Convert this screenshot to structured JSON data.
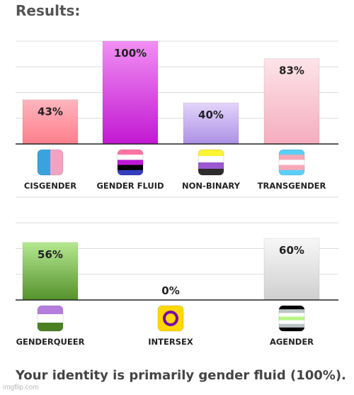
{
  "header": {
    "title": "Results:"
  },
  "footer": {
    "summary": "Your identity is primarily gender fluid (100%).",
    "watermark": "imgflip.com"
  },
  "chart_data": [
    {
      "type": "bar",
      "categories": [
        "CISGENDER",
        "GENDER FLUID",
        "NON-BINARY",
        "TRANSGENDER"
      ],
      "values": [
        43,
        100,
        40,
        83
      ],
      "value_labels": [
        "43%",
        "100%",
        "40%",
        "83%"
      ],
      "ylim": [
        0,
        100
      ],
      "grid": true,
      "colors": [
        [
          "#fdb5be",
          "#fe7f8c"
        ],
        [
          "#f18ff3",
          "#c218d2"
        ],
        [
          "#e3d4fa",
          "#ad90e6"
        ],
        [
          "#fde4ea",
          "#f5adbd"
        ]
      ],
      "icons": [
        "cisgender-flag-icon",
        "gender-fluid-flag-icon",
        "non-binary-flag-icon",
        "transgender-flag-icon"
      ]
    },
    {
      "type": "bar",
      "categories": [
        "GENDERQUEER",
        "INTERSEX",
        "AGENDER"
      ],
      "values": [
        56,
        0,
        60
      ],
      "value_labels": [
        "56%",
        "0%",
        "60%"
      ],
      "ylim": [
        0,
        100
      ],
      "grid": true,
      "colors": [
        [
          "#b4e892",
          "#55922b"
        ],
        [
          "#f6d23a",
          "#e3b40a"
        ],
        [
          "#f7f7f7",
          "#cfcfcf"
        ]
      ],
      "icons": [
        "genderqueer-flag-icon",
        "intersex-flag-icon",
        "agender-flag-icon"
      ]
    }
  ]
}
